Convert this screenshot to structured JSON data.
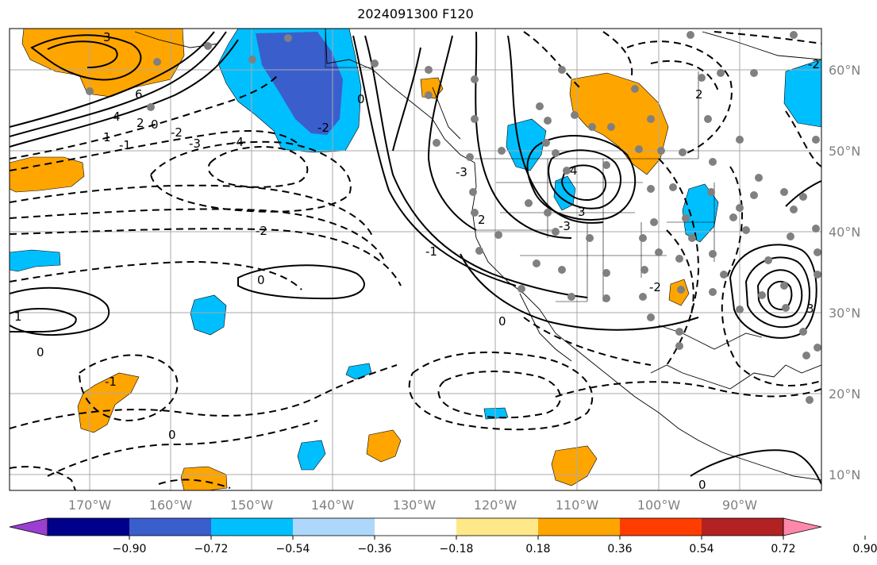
{
  "title": "2024091300 F120",
  "map": {
    "lon_labels": [
      "170°W",
      "160°W",
      "150°W",
      "140°W",
      "130°W",
      "120°W",
      "110°W",
      "100°W",
      "90°W"
    ],
    "lat_labels": [
      "60°N",
      "50°N",
      "40°N",
      "30°N",
      "20°N",
      "10°N"
    ],
    "contour_labels": [
      "6",
      "4",
      "3",
      "2",
      "1",
      "0",
      "-1",
      "-2",
      "-3",
      "-4",
      "2",
      "0",
      "-2",
      "1",
      "0",
      "-1",
      "0",
      "-2",
      "0",
      "-3",
      "3",
      "4",
      "-3",
      "0",
      "2",
      "-2",
      "0",
      "3",
      "-1",
      "-2"
    ]
  },
  "colorbar": {
    "ticks": [
      "−0.90",
      "−0.72",
      "−0.54",
      "−0.36",
      "−0.18",
      "0.18",
      "0.36",
      "0.54",
      "0.72",
      "0.90"
    ],
    "colors": [
      "#9a3fd1",
      "#00008b",
      "#3a5fcd",
      "#00bfff",
      "#add8fb",
      "#ffffff",
      "#ffe88a",
      "#ffa500",
      "#ff3d00",
      "#b22222",
      "#ff88aa"
    ]
  },
  "colors": {
    "neg_light": "#00bfff",
    "neg_mid": "#3a5fcd",
    "pos_orange": "#ffa500",
    "station": "#808080"
  }
}
